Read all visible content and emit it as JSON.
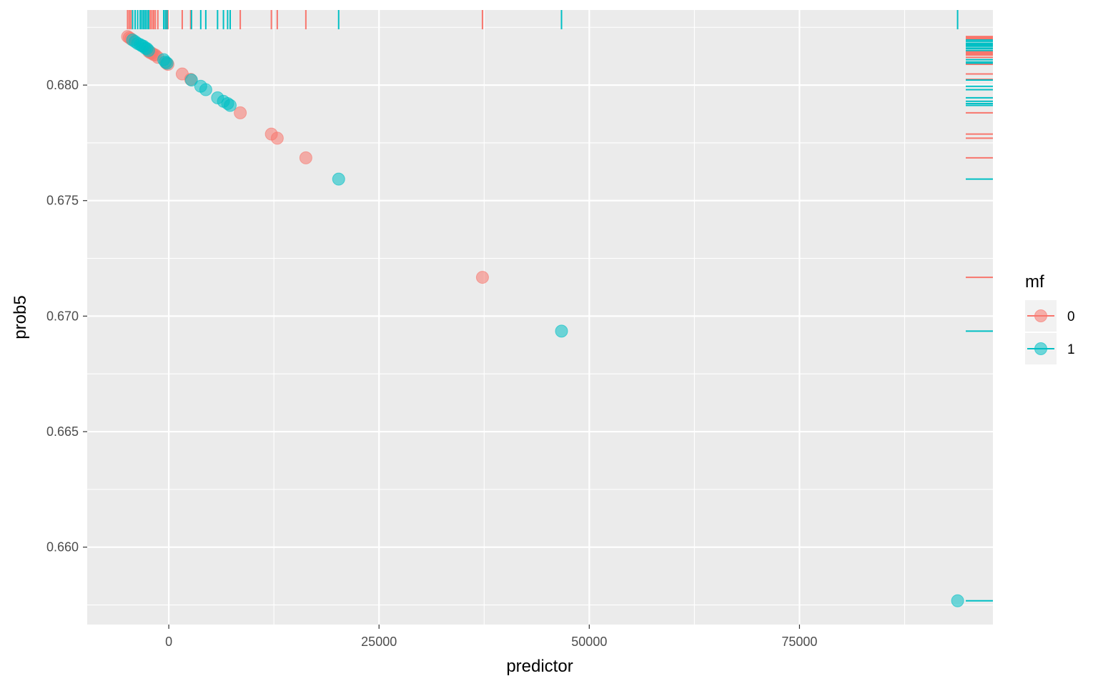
{
  "chart_data": {
    "type": "scatter",
    "xlabel": "predictor",
    "ylabel": "prob5",
    "xlim": [
      -9700,
      98000
    ],
    "ylim": [
      0.65665,
      0.68325
    ],
    "x_ticks": [
      0,
      25000,
      50000,
      75000
    ],
    "x_tick_labels": [
      "0",
      "25000",
      "50000",
      "75000"
    ],
    "y_ticks": [
      0.66,
      0.665,
      0.67,
      0.675,
      0.68
    ],
    "y_tick_labels": [
      "0.660",
      "0.665",
      "0.670",
      "0.675",
      "0.680"
    ],
    "grid": true,
    "rug": "top and right",
    "legend": {
      "title": "mf",
      "position": "right",
      "entries": [
        {
          "label": "0",
          "color": "#F8766D"
        },
        {
          "label": "1",
          "color": "#00BFC4"
        }
      ]
    },
    "series": [
      {
        "name": "0",
        "color": "#F8766D",
        "x": [
          -4900,
          -4700,
          -4500,
          -2400,
          -2200,
          -2000,
          -1800,
          -1600,
          -1300,
          -300,
          -100,
          1600,
          2600,
          8500,
          12200,
          12900,
          16300,
          37300
        ],
        "y": [
          0.6821,
          0.68205,
          0.682,
          0.68145,
          0.6814,
          0.68138,
          0.68132,
          0.6813,
          0.6812,
          0.68095,
          0.6809,
          0.68048,
          0.68025,
          0.6788,
          0.67788,
          0.6777,
          0.67685,
          0.67168
        ]
      },
      {
        "name": "1",
        "color": "#00BFC4",
        "x": [
          -4300,
          -4000,
          -3700,
          -3400,
          -3200,
          -3000,
          -2800,
          -2600,
          -2400,
          -600,
          -400,
          -200,
          2700,
          3800,
          4400,
          5800,
          6500,
          7000,
          7300,
          20200,
          46700,
          93800
        ],
        "y": [
          0.68195,
          0.68188,
          0.6818,
          0.68175,
          0.6817,
          0.68168,
          0.6816,
          0.68158,
          0.6815,
          0.6811,
          0.681,
          0.68095,
          0.68022,
          0.67995,
          0.6798,
          0.67945,
          0.6793,
          0.6792,
          0.67912,
          0.67593,
          0.66935,
          0.65768
        ]
      }
    ]
  }
}
